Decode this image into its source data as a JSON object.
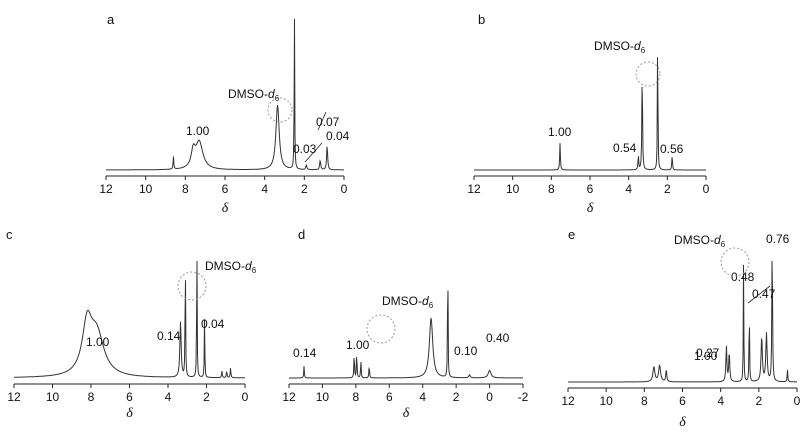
{
  "figure": {
    "title": ""
  },
  "chart_data": [
    {
      "type": "line",
      "panel": "a",
      "xlabel": "δ",
      "xlim": [
        12,
        0
      ],
      "x_reversed": true,
      "xticks": [
        "12",
        "10",
        "8",
        "6",
        "4",
        "2",
        "0"
      ],
      "solvent": {
        "name": "DMSO-d",
        "sub": "6",
        "delta": 2.5
      },
      "peaks": [
        {
          "delta": 8.6,
          "height": 0.08,
          "width": 0.02
        },
        {
          "delta": 7.6,
          "height": 0.1,
          "width": 0.12
        },
        {
          "delta": 7.3,
          "height": 0.17,
          "width": 0.22
        },
        {
          "delta": 3.35,
          "height": 0.4,
          "width": 0.1
        },
        {
          "delta": 2.5,
          "height": 1.0,
          "width": 0.015
        },
        {
          "delta": 1.9,
          "height": 0.03,
          "width": 0.03
        },
        {
          "delta": 1.2,
          "height": 0.06,
          "width": 0.03
        },
        {
          "delta": 0.85,
          "height": 0.15,
          "width": 0.03
        }
      ],
      "integrations": [
        {
          "text": "1.00",
          "delta": 7.4
        },
        {
          "text": "0.07",
          "delta": 0.95
        },
        {
          "text": "0.03",
          "delta": 1.9
        },
        {
          "text": "0.04",
          "delta": 0.6
        }
      ]
    },
    {
      "type": "line",
      "panel": "b",
      "xlabel": "δ",
      "xlim": [
        12,
        0
      ],
      "x_reversed": true,
      "xticks": [
        "12",
        "10",
        "8",
        "6",
        "4",
        "2",
        "0"
      ],
      "solvent": {
        "name": "DMSO-d",
        "sub": "6",
        "delta": 2.5
      },
      "peaks": [
        {
          "delta": 7.55,
          "height": 0.18,
          "width": 0.02
        },
        {
          "delta": 3.5,
          "height": 0.1,
          "width": 0.02
        },
        {
          "delta": 3.3,
          "height": 0.7,
          "width": 0.02
        },
        {
          "delta": 2.5,
          "height": 1.0,
          "width": 0.015
        },
        {
          "delta": 1.75,
          "height": 0.1,
          "width": 0.02
        }
      ],
      "integrations": [
        {
          "text": "1.00",
          "delta": 7.7
        },
        {
          "text": "0.54",
          "delta": 4.0
        },
        {
          "text": "0.56",
          "delta": 1.5
        }
      ]
    },
    {
      "type": "line",
      "panel": "c",
      "xlabel": "δ",
      "xlim": [
        12,
        0
      ],
      "x_reversed": true,
      "xticks": [
        "12",
        "10",
        "8",
        "6",
        "4",
        "2",
        "0"
      ],
      "solvent": {
        "name": "DMSO-d",
        "sub": "6",
        "delta": 2.5
      },
      "peaks": [
        {
          "delta": 8.2,
          "height": 0.35,
          "width": 0.3
        },
        {
          "delta": 7.7,
          "height": 0.3,
          "width": 0.45
        },
        {
          "delta": 3.35,
          "height": 0.4,
          "width": 0.04
        },
        {
          "delta": 3.1,
          "height": 0.95,
          "width": 0.015
        },
        {
          "delta": 2.5,
          "height": 1.0,
          "width": 0.015
        },
        {
          "delta": 2.1,
          "height": 0.45,
          "width": 0.015
        },
        {
          "delta": 1.2,
          "height": 0.05,
          "width": 0.02
        },
        {
          "delta": 0.95,
          "height": 0.05,
          "width": 0.02
        },
        {
          "delta": 0.75,
          "height": 0.07,
          "width": 0.02
        }
      ],
      "integrations": [
        {
          "text": "1.00",
          "delta": 8.0
        },
        {
          "text": "0.14",
          "delta": 3.8
        },
        {
          "text": "0.04",
          "delta": 1.8
        }
      ]
    },
    {
      "type": "line",
      "panel": "d",
      "xlabel": "δ",
      "xlim": [
        12,
        -2
      ],
      "x_reversed": true,
      "xticks": [
        "12",
        "10",
        "8",
        "6",
        "4",
        "2",
        "0",
        "-2"
      ],
      "solvent": {
        "name": "DMSO-d",
        "sub": "6",
        "delta": 2.5
      },
      "peaks": [
        {
          "delta": 11.1,
          "height": 0.08,
          "width": 0.02
        },
        {
          "delta": 8.1,
          "height": 0.17,
          "width": 0.02
        },
        {
          "delta": 7.95,
          "height": 0.18,
          "width": 0.02
        },
        {
          "delta": 7.7,
          "height": 0.12,
          "width": 0.02
        },
        {
          "delta": 7.2,
          "height": 0.09,
          "width": 0.02
        },
        {
          "delta": 3.5,
          "height": 0.4,
          "width": 0.12
        },
        {
          "delta": 2.5,
          "height": 1.0,
          "width": 0.015
        },
        {
          "delta": 1.2,
          "height": 0.02,
          "width": 0.05
        },
        {
          "delta": 0.0,
          "height": 0.05,
          "width": 0.1
        }
      ],
      "integrations": [
        {
          "text": "0.14",
          "delta": 11.1
        },
        {
          "text": "1.00",
          "delta": 7.9
        },
        {
          "text": "0.10",
          "delta": 1.2
        },
        {
          "text": "0.40",
          "delta": -0.6
        }
      ]
    },
    {
      "type": "line",
      "panel": "e",
      "xlabel": "δ",
      "xlim": [
        12,
        0
      ],
      "x_reversed": true,
      "xticks": [
        "12",
        "10",
        "8",
        "6",
        "4",
        "2",
        "0"
      ],
      "solvent": {
        "name": "DMSO-d",
        "sub": "6",
        "delta": 2.5
      },
      "peaks": [
        {
          "delta": 7.5,
          "height": 0.1,
          "width": 0.06
        },
        {
          "delta": 7.2,
          "height": 0.11,
          "width": 0.06
        },
        {
          "delta": 6.85,
          "height": 0.08,
          "width": 0.03
        },
        {
          "delta": 3.7,
          "height": 0.24,
          "width": 0.03
        },
        {
          "delta": 3.55,
          "height": 0.2,
          "width": 0.03
        },
        {
          "delta": 2.8,
          "height": 0.82,
          "width": 0.015
        },
        {
          "delta": 2.5,
          "height": 0.55,
          "width": 0.015
        },
        {
          "delta": 1.85,
          "height": 0.3,
          "width": 0.04
        },
        {
          "delta": 1.6,
          "height": 0.32,
          "width": 0.04
        },
        {
          "delta": 1.3,
          "height": 1.0,
          "width": 0.02
        },
        {
          "delta": 0.5,
          "height": 0.08,
          "width": 0.02
        }
      ],
      "integrations": [
        {
          "text": "1.00",
          "delta": 7.3
        },
        {
          "text": "0.27",
          "delta": 4.5
        },
        {
          "text": "0.48",
          "delta": 2.7
        },
        {
          "text": "0.47",
          "delta": 0.8
        },
        {
          "text": "0.76",
          "delta": 0.5
        }
      ]
    }
  ]
}
